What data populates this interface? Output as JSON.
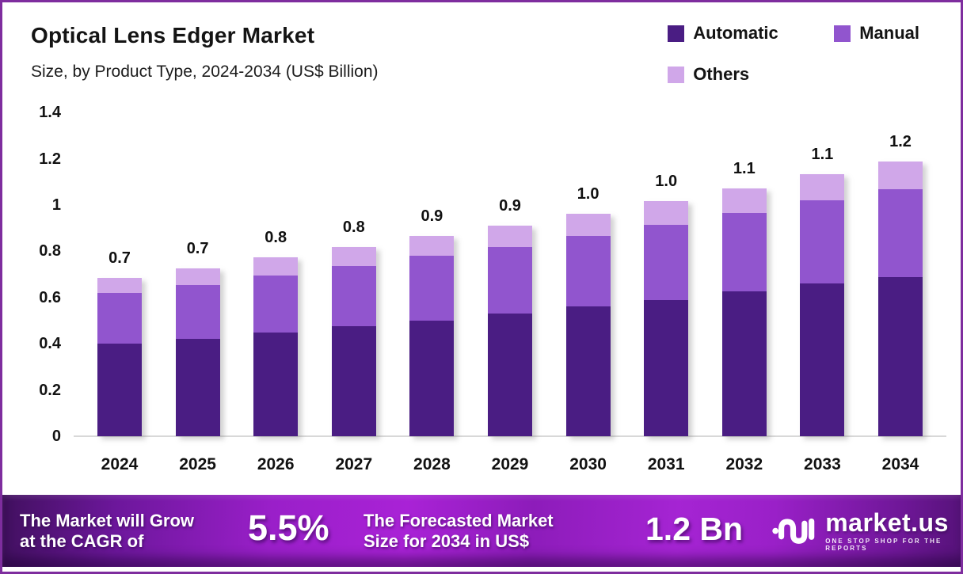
{
  "frame": {
    "border_color": "#7e2d9e",
    "background": "#ffffff"
  },
  "header": {
    "title": "Optical Lens Edger Market",
    "subtitle": "Size, by Product Type, 2024-2034 (US$ Billion)"
  },
  "legend": {
    "items": [
      {
        "label": "Automatic",
        "color": "#4a1d83"
      },
      {
        "label": "Manual",
        "color": "#9155ce"
      },
      {
        "label": "Others",
        "color": "#d0a7e9"
      }
    ]
  },
  "chart_data": {
    "type": "bar",
    "stacked": true,
    "title": "Optical Lens Edger Market Size, by Product Type, 2024-2034 (US$ Billion)",
    "categories": [
      "2024",
      "2025",
      "2026",
      "2027",
      "2028",
      "2029",
      "2030",
      "2031",
      "2032",
      "2033",
      "2034"
    ],
    "series": [
      {
        "name": "Automatic",
        "color": "#4a1d83",
        "values": [
          0.4,
          0.42,
          0.45,
          0.475,
          0.5,
          0.53,
          0.56,
          0.59,
          0.625,
          0.66,
          0.69
        ]
      },
      {
        "name": "Manual",
        "color": "#9155ce",
        "values": [
          0.22,
          0.235,
          0.245,
          0.26,
          0.28,
          0.29,
          0.305,
          0.325,
          0.34,
          0.36,
          0.38
        ]
      },
      {
        "name": "Others",
        "color": "#d0a7e9",
        "values": [
          0.065,
          0.072,
          0.078,
          0.082,
          0.086,
          0.09,
          0.098,
          0.103,
          0.108,
          0.113,
          0.12
        ]
      }
    ],
    "total_labels": [
      "0.7",
      "0.7",
      "0.8",
      "0.8",
      "0.9",
      "0.9",
      "1.0",
      "1.0",
      "1.1",
      "1.1",
      "1.2"
    ],
    "xlabel": "",
    "ylabel": "",
    "ylim": [
      0,
      1.4
    ],
    "yticks": [
      "0",
      "0.2",
      "0.4",
      "0.6",
      "0.8",
      "1",
      "1.2",
      "1.4"
    ],
    "grid": false,
    "legend_position": "top-right"
  },
  "banner": {
    "cagr_label_line1": "The Market will Grow",
    "cagr_label_line2": "at the CAGR of",
    "cagr_value": "5.5%",
    "forecast_label_line1": "The Forecasted Market",
    "forecast_label_line2": "Size for 2034 in US$",
    "forecast_value": "1.2 Bn",
    "logo_text": "market.us",
    "logo_tagline": "ONE STOP SHOP FOR THE REPORTS"
  }
}
